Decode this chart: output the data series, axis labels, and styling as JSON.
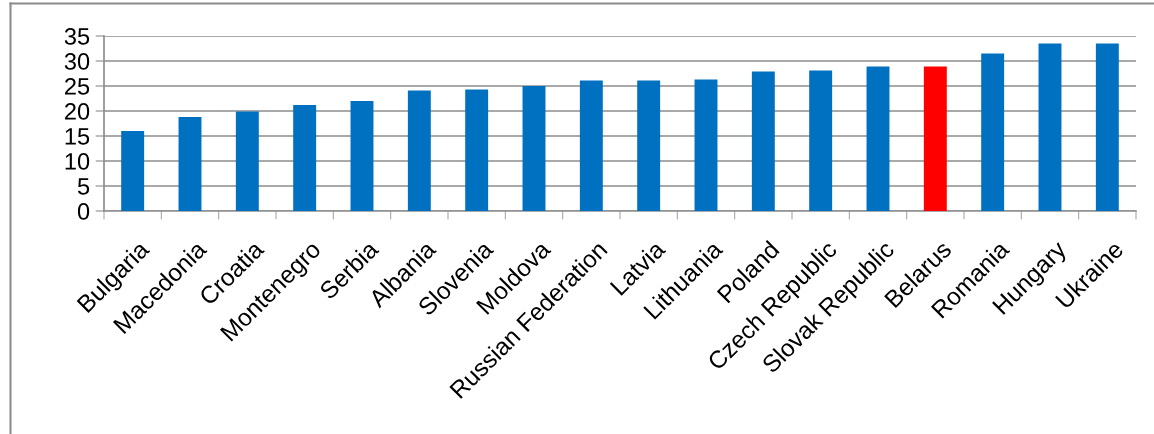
{
  "chart_data": {
    "type": "bar",
    "categories": [
      "Bulgaria",
      "Macedonia",
      "Croatia",
      "Montenegro",
      "Serbia",
      "Albania",
      "Slovenia",
      "Moldova",
      "Russian Federation",
      "Latvia",
      "Lithuania",
      "Poland",
      "Czech Republic",
      "Slovak Republic",
      "Belarus",
      "Romania",
      "Hungary",
      "Ukraine"
    ],
    "values": [
      16.0,
      18.8,
      19.9,
      21.2,
      22.0,
      24.1,
      24.3,
      25.0,
      26.1,
      26.1,
      26.3,
      27.9,
      28.1,
      28.9,
      28.9,
      31.5,
      33.5,
      33.5
    ],
    "colors": [
      "#0070c0",
      "#0070c0",
      "#0070c0",
      "#0070c0",
      "#0070c0",
      "#0070c0",
      "#0070c0",
      "#0070c0",
      "#0070c0",
      "#0070c0",
      "#0070c0",
      "#0070c0",
      "#0070c0",
      "#0070c0",
      "#ff0000",
      "#0070c0",
      "#0070c0",
      "#0070c0"
    ],
    "ylim": [
      0,
      35
    ],
    "yticks": [
      0,
      5,
      10,
      15,
      20,
      25,
      30,
      35
    ],
    "grid": "y",
    "legend": false
  }
}
